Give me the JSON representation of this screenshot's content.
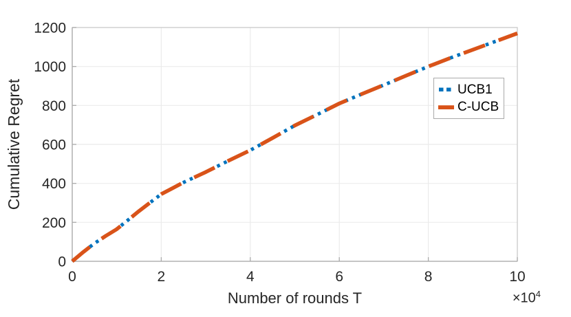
{
  "chart_data": {
    "type": "line",
    "title": "",
    "xlabel": "Number of rounds T",
    "ylabel": "Cumulative Regret",
    "x_axis_multiplier": "×10⁴",
    "x_axis_multiplier_prefix": "×10",
    "x_axis_multiplier_exponent": "4",
    "xlim": [
      0,
      10
    ],
    "ylim": [
      0,
      1200
    ],
    "x_ticks": [
      0,
      2,
      4,
      6,
      8,
      10
    ],
    "y_ticks": [
      0,
      200,
      400,
      600,
      800,
      1000,
      1200
    ],
    "grid": true,
    "legend_position": "inside-right",
    "x": [
      0,
      0.25,
      0.5,
      0.75,
      1,
      1.5,
      2,
      2.5,
      3,
      3.5,
      4,
      4.5,
      5,
      5.5,
      6,
      6.5,
      7,
      7.5,
      8,
      8.5,
      9,
      9.5,
      10
    ],
    "series": [
      {
        "name": "UCB1",
        "color": "#0072BD",
        "line_style": "dotted",
        "values": [
          0,
          48,
          92,
          130,
          165,
          258,
          345,
          405,
          458,
          515,
          570,
          633,
          697,
          753,
          810,
          858,
          905,
          953,
          1000,
          1044,
          1086,
          1128,
          1170
        ]
      },
      {
        "name": "C-UCB",
        "color": "#D95319",
        "line_style": "dashed",
        "values": [
          0,
          48,
          92,
          130,
          165,
          258,
          345,
          405,
          458,
          515,
          570,
          633,
          697,
          753,
          810,
          858,
          905,
          953,
          1000,
          1044,
          1086,
          1128,
          1170
        ]
      }
    ]
  },
  "colors": {
    "text": "#262626",
    "grid": "#EBEBEB",
    "axis": "#ABABAB",
    "box": "#C9C9C9",
    "legend_border": "#A9A9A9",
    "background": "#FFFFFF"
  }
}
